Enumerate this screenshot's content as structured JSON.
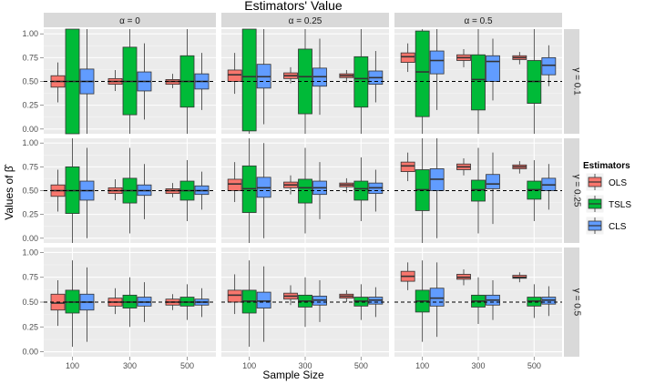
{
  "chart_data": {
    "type": "boxplot",
    "title": "Estimators' Value",
    "xlabel": "Sample Size",
    "ylabel": "Values of β̂",
    "ylim": [
      -0.05,
      1.05
    ],
    "yticks": [
      "0.00",
      "0.25",
      "0.50",
      "0.75",
      "1.00"
    ],
    "ytick_values": [
      0,
      0.25,
      0.5,
      0.75,
      1.0
    ],
    "reference_line": 0.5,
    "categories": [
      "100",
      "300",
      "500"
    ],
    "col_facets": [
      "α = 0",
      "α = 0.25",
      "α = 0.5"
    ],
    "row_facets": [
      "γ = 0.1",
      "γ = 0.25",
      "γ = 0.5"
    ],
    "legend": {
      "title": "Estimators",
      "entries": [
        {
          "name": "OLS",
          "color": "#F8766D"
        },
        {
          "name": "TSLS",
          "color": "#00BA38"
        },
        {
          "name": "CLS",
          "color": "#619CFF"
        }
      ]
    },
    "panels": [
      [
        {
          "OLS": [
            [
              0.28,
              0.44,
              0.5,
              0.56,
              0.7
            ],
            [
              0.4,
              0.47,
              0.5,
              0.53,
              0.62
            ],
            [
              0.43,
              0.47,
              0.5,
              0.52,
              0.58
            ]
          ],
          "TSLS": [
            [
              -0.05,
              -0.05,
              0.5,
              1.05,
              1.05
            ],
            [
              -0.05,
              0.15,
              0.5,
              0.86,
              1.05
            ],
            [
              -0.05,
              0.23,
              0.5,
              0.77,
              1.05
            ]
          ],
          "CLS": [
            [
              -0.05,
              0.37,
              0.5,
              0.63,
              1.05
            ],
            [
              0.1,
              0.4,
              0.5,
              0.6,
              0.9
            ],
            [
              0.2,
              0.42,
              0.5,
              0.58,
              0.8
            ]
          ]
        },
        {
          "OLS": [
            [
              0.37,
              0.5,
              0.57,
              0.62,
              0.8
            ],
            [
              0.48,
              0.53,
              0.56,
              0.59,
              0.65
            ],
            [
              0.49,
              0.54,
              0.56,
              0.58,
              0.62
            ]
          ],
          "TSLS": [
            [
              -0.05,
              -0.02,
              0.55,
              1.05,
              1.05
            ],
            [
              -0.05,
              0.16,
              0.55,
              0.84,
              1.05
            ],
            [
              -0.05,
              0.23,
              0.53,
              0.76,
              1.05
            ]
          ],
          "CLS": [
            [
              0.05,
              0.43,
              0.55,
              0.68,
              1.05
            ],
            [
              0.15,
              0.45,
              0.55,
              0.64,
              0.95
            ],
            [
              0.28,
              0.47,
              0.54,
              0.61,
              0.82
            ]
          ]
        },
        {
          "OLS": [
            [
              0.6,
              0.7,
              0.76,
              0.8,
              0.9
            ],
            [
              0.65,
              0.72,
              0.75,
              0.78,
              0.84
            ],
            [
              0.68,
              0.73,
              0.75,
              0.77,
              0.81
            ]
          ],
          "TSLS": [
            [
              -0.05,
              0.13,
              0.6,
              1.03,
              1.05
            ],
            [
              -0.05,
              0.2,
              0.52,
              0.78,
              1.05
            ],
            [
              -0.05,
              0.27,
              0.5,
              0.72,
              1.05
            ]
          ],
          "CLS": [
            [
              0.2,
              0.58,
              0.72,
              0.82,
              1.05
            ],
            [
              0.3,
              0.5,
              0.71,
              0.77,
              0.95
            ],
            [
              0.45,
              0.57,
              0.67,
              0.75,
              0.88
            ]
          ]
        }
      ],
      [
        {
          "OLS": [
            [
              0.28,
              0.44,
              0.5,
              0.56,
              0.72
            ],
            [
              0.4,
              0.47,
              0.5,
              0.53,
              0.62
            ],
            [
              0.43,
              0.47,
              0.5,
              0.52,
              0.58
            ]
          ],
          "TSLS": [
            [
              -0.05,
              0.26,
              0.5,
              0.75,
              1.05
            ],
            [
              0.05,
              0.37,
              0.5,
              0.63,
              0.95
            ],
            [
              0.18,
              0.4,
              0.5,
              0.6,
              0.82
            ]
          ],
          "CLS": [
            [
              0.0,
              0.4,
              0.5,
              0.6,
              0.95
            ],
            [
              0.2,
              0.45,
              0.5,
              0.56,
              0.78
            ],
            [
              0.3,
              0.46,
              0.5,
              0.55,
              0.7
            ]
          ]
        },
        {
          "OLS": [
            [
              0.38,
              0.5,
              0.57,
              0.62,
              0.8
            ],
            [
              0.46,
              0.53,
              0.56,
              0.59,
              0.66
            ],
            [
              0.48,
              0.54,
              0.56,
              0.58,
              0.63
            ]
          ],
          "TSLS": [
            [
              -0.05,
              0.27,
              0.52,
              0.76,
              1.05
            ],
            [
              0.05,
              0.37,
              0.53,
              0.62,
              0.95
            ],
            [
              0.18,
              0.4,
              0.52,
              0.6,
              0.85
            ]
          ],
          "CLS": [
            [
              0.0,
              0.43,
              0.53,
              0.64,
              1.0
            ],
            [
              0.2,
              0.46,
              0.53,
              0.6,
              0.8
            ],
            [
              0.28,
              0.47,
              0.53,
              0.58,
              0.72
            ]
          ]
        },
        {
          "OLS": [
            [
              0.6,
              0.7,
              0.76,
              0.8,
              0.9
            ],
            [
              0.66,
              0.72,
              0.75,
              0.78,
              0.84
            ],
            [
              0.68,
              0.73,
              0.75,
              0.77,
              0.81
            ]
          ],
          "TSLS": [
            [
              -0.05,
              0.29,
              0.51,
              0.72,
              1.05
            ],
            [
              0.05,
              0.39,
              0.51,
              0.61,
              0.95
            ],
            [
              0.18,
              0.41,
              0.51,
              0.6,
              0.82
            ]
          ],
          "CLS": [
            [
              0.0,
              0.5,
              0.62,
              0.73,
              1.05
            ],
            [
              0.15,
              0.52,
              0.57,
              0.67,
              0.9
            ],
            [
              0.3,
              0.5,
              0.56,
              0.63,
              0.78
            ]
          ]
        }
      ],
      [
        {
          "OLS": [
            [
              0.26,
              0.42,
              0.49,
              0.58,
              0.72
            ],
            [
              0.38,
              0.46,
              0.5,
              0.54,
              0.64
            ],
            [
              0.42,
              0.47,
              0.5,
              0.53,
              0.58
            ]
          ],
          "TSLS": [
            [
              0.05,
              0.39,
              0.5,
              0.62,
              0.92
            ],
            [
              0.25,
              0.44,
              0.5,
              0.57,
              0.75
            ],
            [
              0.32,
              0.46,
              0.5,
              0.55,
              0.68
            ]
          ],
          "CLS": [
            [
              0.1,
              0.42,
              0.5,
              0.58,
              0.85
            ],
            [
              0.3,
              0.46,
              0.5,
              0.55,
              0.7
            ],
            [
              0.35,
              0.47,
              0.5,
              0.53,
              0.64
            ]
          ]
        },
        {
          "OLS": [
            [
              0.38,
              0.5,
              0.57,
              0.62,
              0.78
            ],
            [
              0.47,
              0.53,
              0.56,
              0.59,
              0.67
            ],
            [
              0.5,
              0.54,
              0.56,
              0.58,
              0.62
            ]
          ],
          "TSLS": [
            [
              0.05,
              0.39,
              0.51,
              0.62,
              0.92
            ],
            [
              0.25,
              0.45,
              0.51,
              0.57,
              0.75
            ],
            [
              0.32,
              0.46,
              0.51,
              0.55,
              0.68
            ]
          ],
          "CLS": [
            [
              0.1,
              0.44,
              0.51,
              0.6,
              0.86
            ],
            [
              0.3,
              0.47,
              0.52,
              0.56,
              0.72
            ],
            [
              0.35,
              0.48,
              0.52,
              0.55,
              0.65
            ]
          ]
        },
        {
          "OLS": [
            [
              0.62,
              0.71,
              0.76,
              0.81,
              0.9
            ],
            [
              0.67,
              0.73,
              0.75,
              0.78,
              0.83
            ],
            [
              0.7,
              0.74,
              0.75,
              0.77,
              0.8
            ]
          ],
          "TSLS": [
            [
              0.1,
              0.4,
              0.51,
              0.62,
              0.92
            ],
            [
              0.28,
              0.45,
              0.51,
              0.57,
              0.75
            ],
            [
              0.34,
              0.46,
              0.51,
              0.55,
              0.68
            ]
          ],
          "CLS": [
            [
              0.15,
              0.46,
              0.54,
              0.64,
              0.9
            ],
            [
              0.32,
              0.47,
              0.52,
              0.57,
              0.72
            ],
            [
              0.36,
              0.48,
              0.52,
              0.55,
              0.66
            ]
          ]
        }
      ]
    ]
  }
}
